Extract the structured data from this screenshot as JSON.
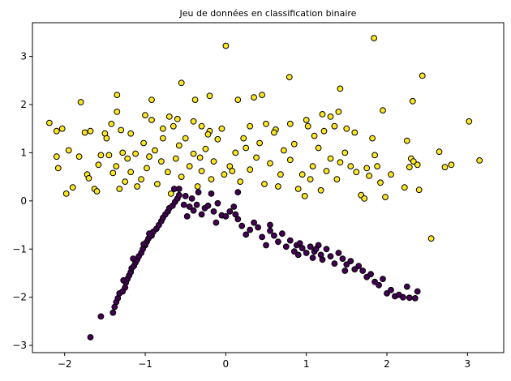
{
  "chart_data": {
    "type": "scatter",
    "title": "Jeu de données en classification binaire",
    "xlabel": "",
    "ylabel": "",
    "xlim": [
      -2.4,
      3.45
    ],
    "ylim": [
      -3.15,
      3.7
    ],
    "xticks": [
      -2,
      -1,
      0,
      1,
      2,
      3
    ],
    "xtick_labels": [
      "−2",
      "−1",
      "0",
      "1",
      "2",
      "3"
    ],
    "yticks": [
      -3,
      -2,
      -1,
      0,
      1,
      2,
      3
    ],
    "ytick_labels": [
      "−3",
      "−2",
      "−1",
      "0",
      "1",
      "2",
      "3"
    ],
    "grid": false,
    "legend": false,
    "series": [
      {
        "color": "#fde725",
        "edgecolor": "#000000",
        "points": [
          [
            0.0,
            3.22
          ],
          [
            1.84,
            3.38
          ],
          [
            2.44,
            2.6
          ],
          [
            0.79,
            2.57
          ],
          [
            -0.55,
            2.45
          ],
          [
            -1.35,
            2.2
          ],
          [
            -0.92,
            2.1
          ],
          [
            -1.8,
            2.05
          ],
          [
            -0.38,
            2.1
          ],
          [
            -0.2,
            2.18
          ],
          [
            0.15,
            2.1
          ],
          [
            0.35,
            2.15
          ],
          [
            0.45,
            2.2
          ],
          [
            1.42,
            2.33
          ],
          [
            2.32,
            2.07
          ],
          [
            1.95,
            1.88
          ],
          [
            -2.19,
            1.62
          ],
          [
            -2.03,
            1.5
          ],
          [
            -2.1,
            1.45
          ],
          [
            -1.75,
            1.42
          ],
          [
            -1.68,
            1.45
          ],
          [
            -1.5,
            1.4
          ],
          [
            -1.42,
            1.6
          ],
          [
            -1.35,
            1.85
          ],
          [
            -1.3,
            1.47
          ],
          [
            -1.18,
            1.4
          ],
          [
            -1.0,
            1.78
          ],
          [
            -0.92,
            1.68
          ],
          [
            -0.78,
            1.5
          ],
          [
            -0.7,
            1.75
          ],
          [
            -0.6,
            1.7
          ],
          [
            -0.4,
            1.65
          ],
          [
            -0.3,
            1.55
          ],
          [
            -0.2,
            1.45
          ],
          [
            -0.05,
            1.5
          ],
          [
            0.3,
            1.55
          ],
          [
            0.5,
            1.6
          ],
          [
            0.62,
            1.48
          ],
          [
            0.8,
            1.6
          ],
          [
            1.0,
            1.68
          ],
          [
            1.2,
            1.8
          ],
          [
            1.3,
            1.75
          ],
          [
            1.4,
            1.85
          ],
          [
            1.5,
            1.5
          ],
          [
            1.6,
            1.42
          ],
          [
            1.82,
            1.3
          ],
          [
            2.25,
            1.25
          ],
          [
            3.02,
            1.65
          ],
          [
            -2.1,
            0.92
          ],
          [
            -2.08,
            0.68
          ],
          [
            -1.98,
            0.15
          ],
          [
            -1.9,
            0.28
          ],
          [
            -1.95,
            1.05
          ],
          [
            -1.82,
            0.92
          ],
          [
            -1.72,
            0.55
          ],
          [
            -1.7,
            0.47
          ],
          [
            -1.63,
            0.25
          ],
          [
            -1.6,
            0.2
          ],
          [
            -1.58,
            0.75
          ],
          [
            -1.55,
            0.95
          ],
          [
            -1.48,
            1.3
          ],
          [
            -1.4,
            0.58
          ],
          [
            -1.36,
            0.72
          ],
          [
            -1.32,
            0.25
          ],
          [
            -1.25,
            0.4
          ],
          [
            -1.22,
            0.88
          ],
          [
            -1.18,
            0.6
          ],
          [
            -1.12,
            0.98
          ],
          [
            -1.1,
            0.3
          ],
          [
            -1.05,
            0.45
          ],
          [
            -1.02,
            1.2
          ],
          [
            -0.98,
            0.68
          ],
          [
            -0.95,
            0.92
          ],
          [
            -0.88,
            1.05
          ],
          [
            -0.85,
            0.35
          ],
          [
            -0.8,
            0.82
          ],
          [
            -0.78,
            1.3
          ],
          [
            -0.72,
            0.6
          ],
          [
            -0.68,
            0.15
          ],
          [
            -0.62,
            0.88
          ],
          [
            -0.58,
            1.15
          ],
          [
            -0.55,
            0.5
          ],
          [
            -0.5,
            1.3
          ],
          [
            -0.45,
            0.72
          ],
          [
            -0.4,
            0.98
          ],
          [
            -0.35,
            0.3
          ],
          [
            -0.3,
            0.62
          ],
          [
            -0.25,
            1.08
          ],
          [
            -0.18,
            0.45
          ],
          [
            -0.15,
            0.82
          ],
          [
            -0.1,
            1.28
          ],
          [
            -0.02,
            0.55
          ],
          [
            0.05,
            0.72
          ],
          [
            0.12,
            1.0
          ],
          [
            0.18,
            0.4
          ],
          [
            0.22,
            1.3
          ],
          [
            0.3,
            0.65
          ],
          [
            0.38,
            0.9
          ],
          [
            0.42,
            1.2
          ],
          [
            0.48,
            0.35
          ],
          [
            0.55,
            0.78
          ],
          [
            0.6,
            1.42
          ],
          [
            0.68,
            0.55
          ],
          [
            0.72,
            1.05
          ],
          [
            0.8,
            0.85
          ],
          [
            0.85,
            1.18
          ],
          [
            0.9,
            0.25
          ],
          [
            0.95,
            0.55
          ],
          [
            0.98,
            0.1
          ],
          [
            1.05,
            0.45
          ],
          [
            1.08,
            0.72
          ],
          [
            1.15,
            1.1
          ],
          [
            1.18,
            0.22
          ],
          [
            1.22,
            1.45
          ],
          [
            1.25,
            0.62
          ],
          [
            1.3,
            0.88
          ],
          [
            1.35,
            1.55
          ],
          [
            1.38,
            0.45
          ],
          [
            1.42,
            0.8
          ],
          [
            1.48,
            1.0
          ],
          [
            1.55,
            0.72
          ],
          [
            1.62,
            0.6
          ],
          [
            1.68,
            0.12
          ],
          [
            1.72,
            0.05
          ],
          [
            1.75,
            0.68
          ],
          [
            1.78,
            0.52
          ],
          [
            1.85,
            0.95
          ],
          [
            1.88,
            0.72
          ],
          [
            1.92,
            0.38
          ],
          [
            1.98,
            0.08
          ],
          [
            2.05,
            0.55
          ],
          [
            2.22,
            0.28
          ],
          [
            2.28,
            0.7
          ],
          [
            2.3,
            0.88
          ],
          [
            2.38,
            0.75
          ],
          [
            2.55,
            -0.78
          ],
          [
            2.65,
            1.02
          ],
          [
            2.72,
            0.7
          ],
          [
            2.8,
            0.75
          ],
          [
            3.15,
            0.84
          ],
          [
            2.4,
            0.23
          ],
          [
            2.33,
            0.82
          ],
          [
            -0.32,
            0.9
          ],
          [
            0.08,
            0.62
          ],
          [
            -1.45,
            0.95
          ],
          [
            -1.28,
            1.0
          ],
          [
            -0.65,
            1.55
          ],
          [
            1.1,
            1.35
          ],
          [
            0.65,
            0.3
          ],
          [
            -0.22,
            1.38
          ],
          [
            0.25,
            1.1
          ],
          [
            1.02,
            1.55
          ]
        ]
      },
      {
        "color": "#440154",
        "edgecolor": "#000000",
        "points": [
          [
            -1.68,
            -2.83
          ],
          [
            -1.55,
            -2.4
          ],
          [
            -1.4,
            -2.32
          ],
          [
            -1.38,
            -2.2
          ],
          [
            -1.36,
            -2.1
          ],
          [
            -1.34,
            -2.02
          ],
          [
            -1.32,
            -1.92
          ],
          [
            -1.28,
            -1.88
          ],
          [
            -1.25,
            -1.8
          ],
          [
            -1.24,
            -1.7
          ],
          [
            -1.22,
            -1.62
          ],
          [
            -1.2,
            -1.55
          ],
          [
            -1.18,
            -1.48
          ],
          [
            -1.17,
            -1.4
          ],
          [
            -1.14,
            -1.35
          ],
          [
            -1.12,
            -1.28
          ],
          [
            -1.1,
            -1.22
          ],
          [
            -1.08,
            -1.15
          ],
          [
            -1.05,
            -1.08
          ],
          [
            -1.03,
            -1.0
          ],
          [
            -1.0,
            -0.92
          ],
          [
            -0.98,
            -0.85
          ],
          [
            -0.96,
            -0.78
          ],
          [
            -0.92,
            -0.72
          ],
          [
            -0.9,
            -0.64
          ],
          [
            -0.86,
            -0.58
          ],
          [
            -0.83,
            -0.5
          ],
          [
            -0.8,
            -0.42
          ],
          [
            -0.78,
            -0.35
          ],
          [
            -0.75,
            -0.28
          ],
          [
            -0.72,
            -0.22
          ],
          [
            -0.7,
            -0.15
          ],
          [
            -0.66,
            -0.1
          ],
          [
            -0.63,
            -0.02
          ],
          [
            -0.6,
            0.05
          ],
          [
            -0.58,
            0.12
          ],
          [
            -0.64,
            0.25
          ],
          [
            -0.58,
            0.25
          ],
          [
            -0.52,
            -0.08
          ],
          [
            -0.5,
            0.1
          ],
          [
            -0.48,
            -0.32
          ],
          [
            -0.45,
            -0.12
          ],
          [
            -0.42,
            0.05
          ],
          [
            -0.4,
            -0.2
          ],
          [
            -0.36,
            -0.08
          ],
          [
            -0.34,
            0.18
          ],
          [
            -0.3,
            -0.28
          ],
          [
            -0.26,
            -0.15
          ],
          [
            -0.22,
            -0.1
          ],
          [
            -0.18,
            0.15
          ],
          [
            -0.15,
            -0.22
          ],
          [
            -0.12,
            -0.45
          ],
          [
            -0.1,
            -0.05
          ],
          [
            -0.05,
            -0.3
          ],
          [
            0.0,
            -0.32
          ],
          [
            0.05,
            -0.22
          ],
          [
            0.1,
            -0.12
          ],
          [
            0.12,
            -0.28
          ],
          [
            0.15,
            -0.38
          ],
          [
            0.2,
            -0.52
          ],
          [
            0.25,
            -0.7
          ],
          [
            0.3,
            -0.6
          ],
          [
            0.35,
            -0.45
          ],
          [
            0.4,
            -0.55
          ],
          [
            0.45,
            -0.75
          ],
          [
            0.5,
            -0.92
          ],
          [
            0.55,
            -0.62
          ],
          [
            0.6,
            -0.72
          ],
          [
            0.65,
            -0.85
          ],
          [
            0.7,
            -0.68
          ],
          [
            0.75,
            -0.95
          ],
          [
            0.8,
            -0.82
          ],
          [
            0.85,
            -1.05
          ],
          [
            0.88,
            -0.92
          ],
          [
            0.9,
            -1.12
          ],
          [
            0.95,
            -0.98
          ],
          [
            1.0,
            -1.08
          ],
          [
            1.05,
            -0.95
          ],
          [
            1.08,
            -1.18
          ],
          [
            1.1,
            -1.05
          ],
          [
            1.15,
            -0.92
          ],
          [
            1.18,
            -1.12
          ],
          [
            1.2,
            -1.22
          ],
          [
            1.25,
            -1.0
          ],
          [
            1.3,
            -1.15
          ],
          [
            1.35,
            -1.3
          ],
          [
            1.4,
            -1.08
          ],
          [
            1.45,
            -1.2
          ],
          [
            1.5,
            -1.32
          ],
          [
            1.55,
            -1.25
          ],
          [
            1.6,
            -1.42
          ],
          [
            1.65,
            -1.35
          ],
          [
            1.7,
            -1.45
          ],
          [
            1.75,
            -1.58
          ],
          [
            1.8,
            -1.52
          ],
          [
            1.85,
            -1.68
          ],
          [
            1.9,
            -1.75
          ],
          [
            1.95,
            -1.62
          ],
          [
            2.0,
            -1.92
          ],
          [
            2.05,
            -1.85
          ],
          [
            2.1,
            -1.98
          ],
          [
            2.15,
            -1.95
          ],
          [
            2.2,
            -2.0
          ],
          [
            2.28,
            -2.01
          ],
          [
            2.35,
            -2.02
          ],
          [
            2.38,
            -1.88
          ],
          [
            2.25,
            -1.78
          ],
          [
            0.15,
            0.18
          ],
          [
            -0.95,
            -0.68
          ],
          [
            -1.02,
            -0.9
          ],
          [
            -1.15,
            -1.2
          ],
          [
            -1.27,
            -1.65
          ],
          [
            0.55,
            -0.5
          ],
          [
            0.92,
            -0.88
          ],
          [
            1.12,
            -1.0
          ],
          [
            1.48,
            -1.45
          ]
        ]
      }
    ]
  }
}
